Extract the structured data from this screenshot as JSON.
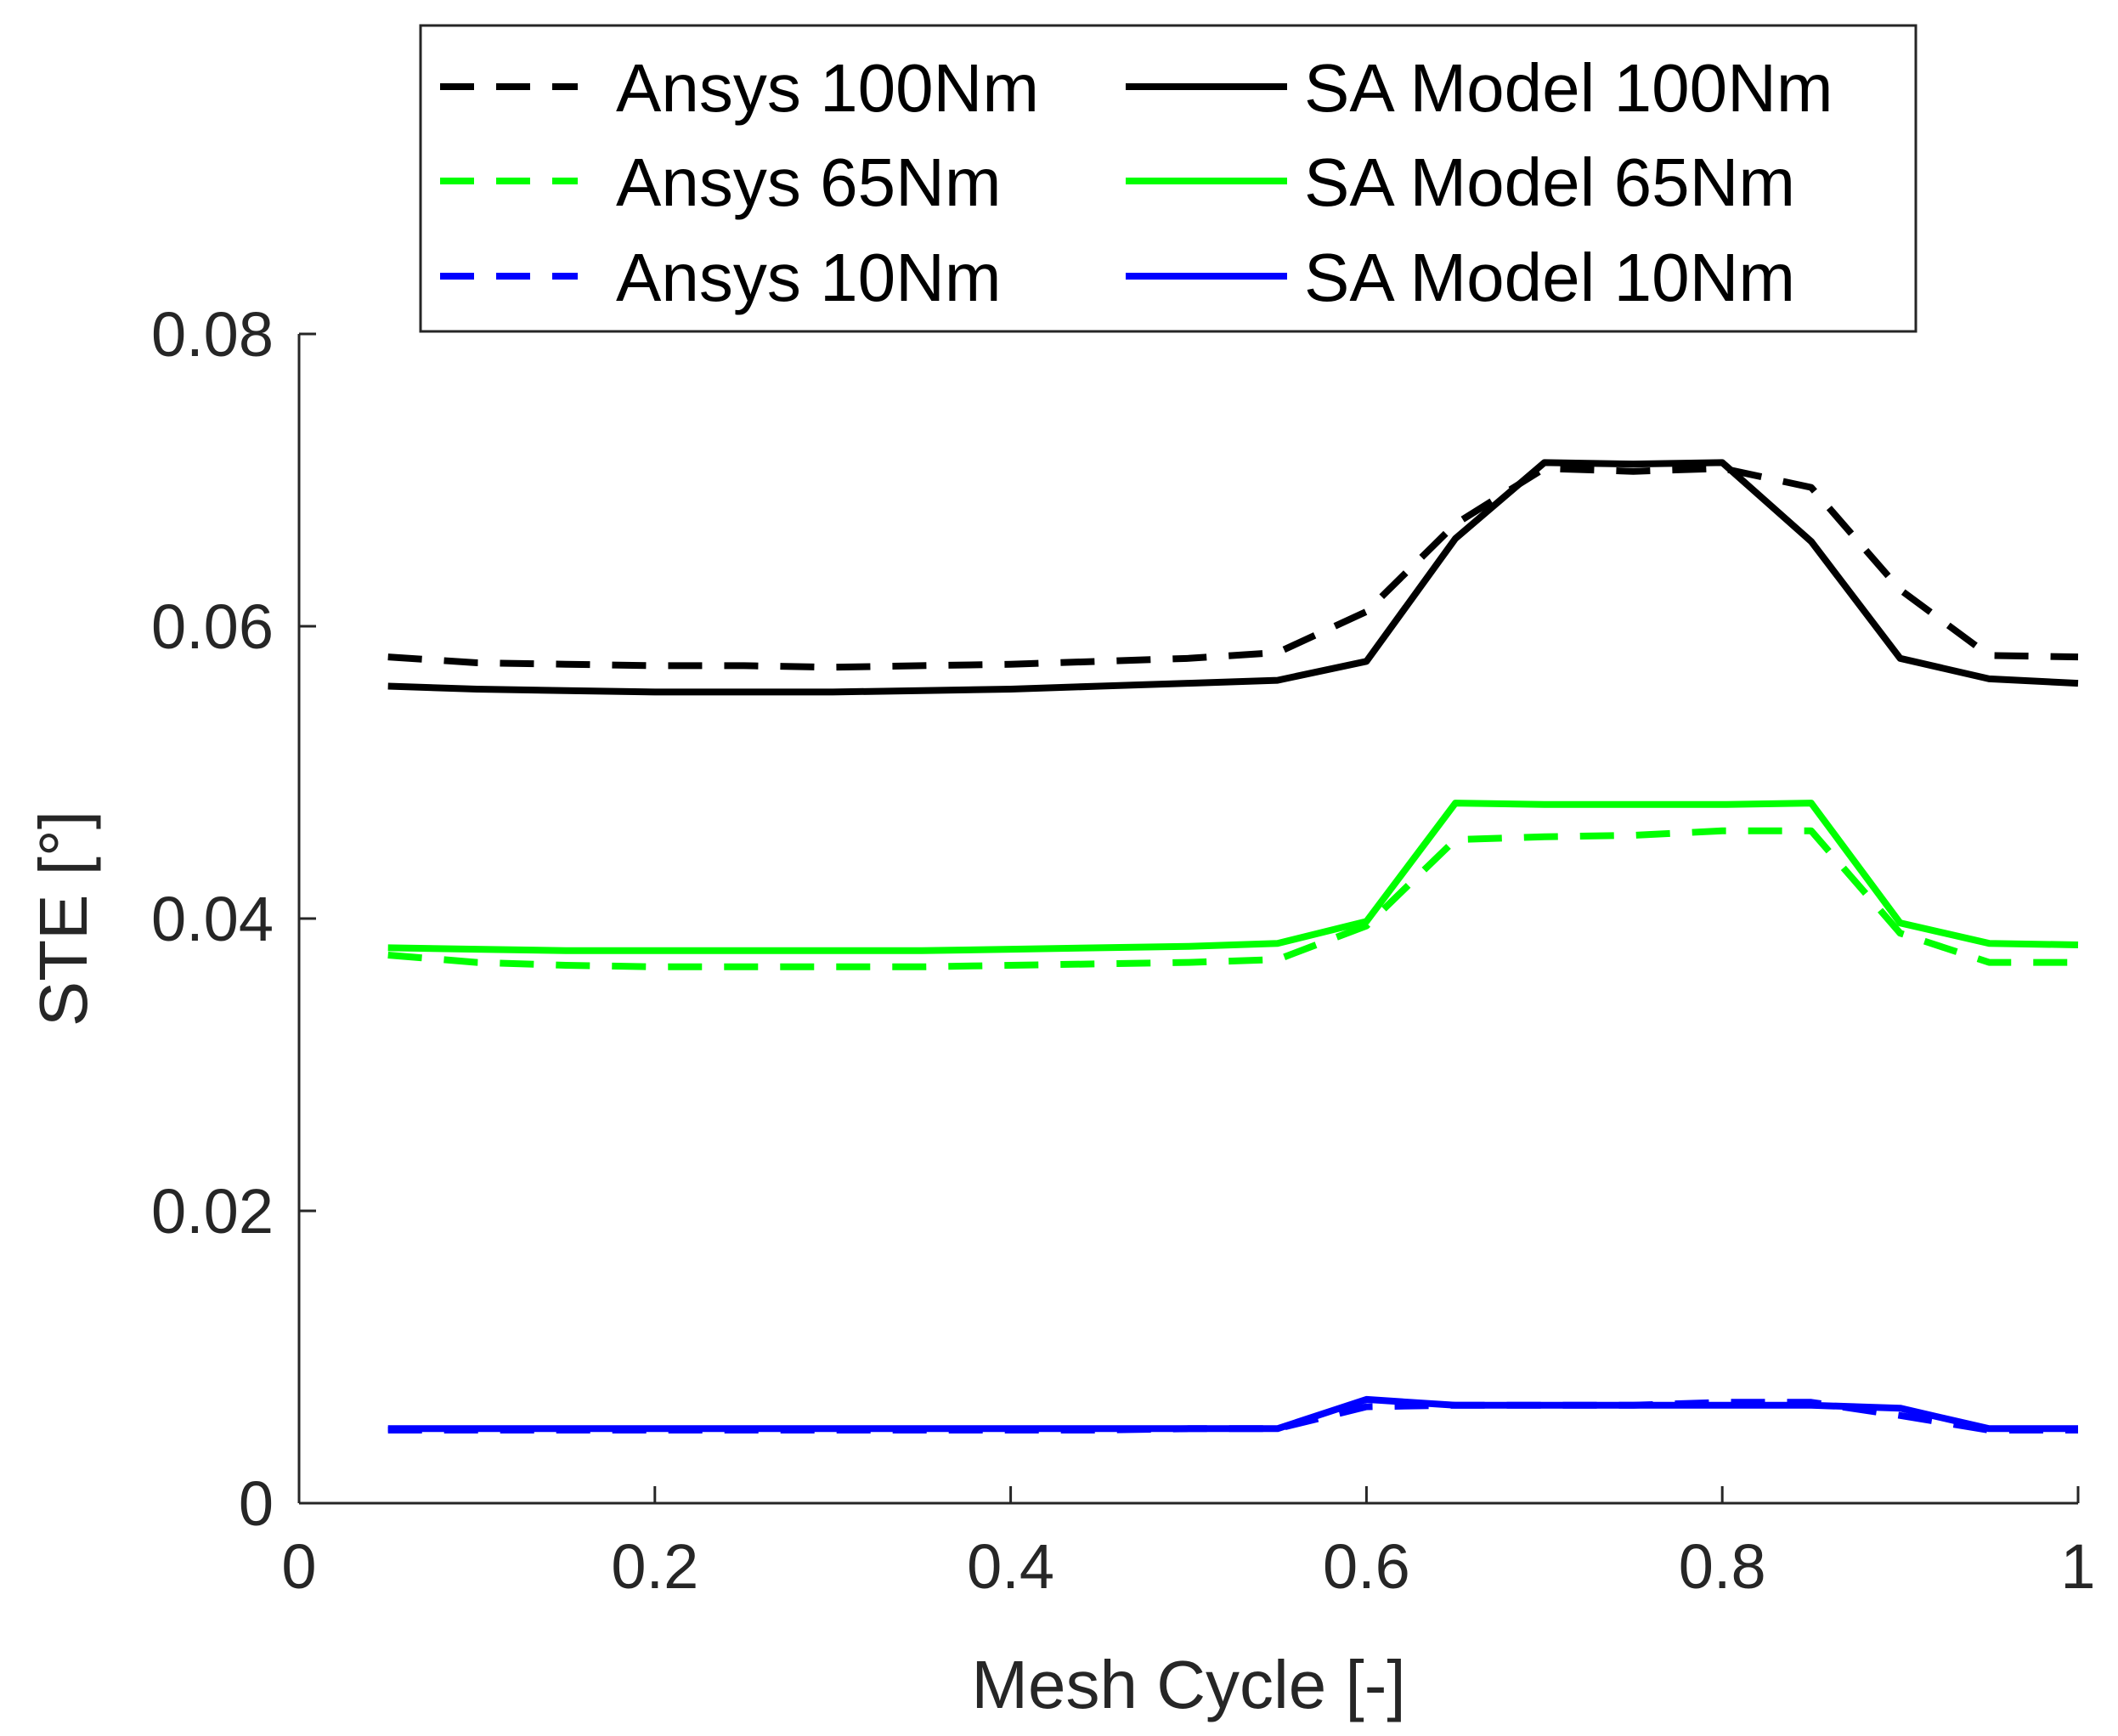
{
  "chart_data": {
    "type": "line",
    "title": "",
    "xlabel": "Mesh Cycle [-]",
    "ylabel": "STE [°]",
    "xlim": [
      0,
      1
    ],
    "ylim": [
      0,
      0.08
    ],
    "xticks": [
      0,
      0.2,
      0.4,
      0.6,
      0.8,
      1
    ],
    "xtick_labels": [
      "0",
      "0.2",
      "0.4",
      "0.6",
      "0.8",
      "1"
    ],
    "yticks": [
      0,
      0.02,
      0.04,
      0.06,
      0.08
    ],
    "ytick_labels": [
      "0",
      "0.02",
      "0.04",
      "0.06",
      "0.08"
    ],
    "grid": false,
    "legend_position": "top-center",
    "legend_columns": 2,
    "x": [
      0.05,
      0.1,
      0.15,
      0.2,
      0.25,
      0.3,
      0.35,
      0.4,
      0.45,
      0.5,
      0.55,
      0.6,
      0.65,
      0.7,
      0.75,
      0.8,
      0.85,
      0.9,
      0.95,
      1.0
    ],
    "series": [
      {
        "name": "Ansys 100Nm",
        "color": "#000000",
        "dash": "dashed",
        "values": [
          0.0579,
          0.0575,
          0.0574,
          0.0573,
          0.0573,
          0.0572,
          0.0573,
          0.0574,
          0.0576,
          0.0578,
          0.0582,
          0.061,
          0.067,
          0.0708,
          0.0706,
          0.0708,
          0.0695,
          0.0625,
          0.058,
          0.0579
        ]
      },
      {
        "name": "SA Model 100Nm",
        "color": "#000000",
        "dash": "solid",
        "values": [
          0.0559,
          0.0557,
          0.0556,
          0.0555,
          0.0555,
          0.0555,
          0.0556,
          0.0557,
          0.0559,
          0.0561,
          0.0563,
          0.0576,
          0.066,
          0.0712,
          0.0711,
          0.0712,
          0.0658,
          0.0578,
          0.0564,
          0.0561
        ]
      },
      {
        "name": "Ansys 65Nm",
        "color": "#00ff00",
        "dash": "dashed",
        "values": [
          0.0375,
          0.037,
          0.0368,
          0.0367,
          0.0367,
          0.0367,
          0.0367,
          0.0368,
          0.0369,
          0.037,
          0.0372,
          0.0395,
          0.0454,
          0.0456,
          0.0457,
          0.046,
          0.046,
          0.039,
          0.037,
          0.037
        ]
      },
      {
        "name": "SA Model 65Nm",
        "color": "#00ff00",
        "dash": "solid",
        "values": [
          0.038,
          0.0379,
          0.0378,
          0.0378,
          0.0378,
          0.0378,
          0.0378,
          0.0379,
          0.038,
          0.0381,
          0.0383,
          0.0398,
          0.0479,
          0.0478,
          0.0478,
          0.0478,
          0.0479,
          0.0397,
          0.0383,
          0.0382
        ]
      },
      {
        "name": "Ansys 10Nm",
        "color": "#0000ff",
        "dash": "dashed",
        "values": [
          0.005,
          0.005,
          0.005,
          0.005,
          0.005,
          0.005,
          0.005,
          0.005,
          0.005,
          0.0051,
          0.0051,
          0.0066,
          0.0067,
          0.0067,
          0.0067,
          0.0069,
          0.0069,
          0.006,
          0.005,
          0.005
        ]
      },
      {
        "name": "SA Model 10Nm",
        "color": "#0000ff",
        "dash": "solid",
        "values": [
          0.0051,
          0.0051,
          0.0051,
          0.0051,
          0.0051,
          0.0051,
          0.0051,
          0.0051,
          0.0051,
          0.0051,
          0.0051,
          0.0071,
          0.0067,
          0.0067,
          0.0067,
          0.0067,
          0.0067,
          0.0065,
          0.0051,
          0.0051
        ]
      }
    ]
  }
}
